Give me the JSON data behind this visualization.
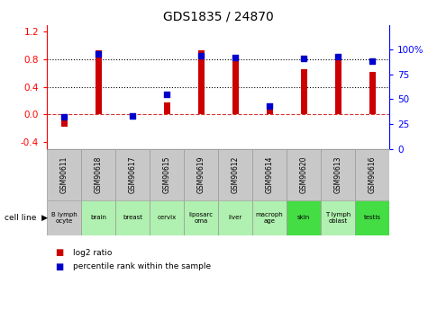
{
  "title": "GDS1835 / 24870",
  "samples": [
    "GSM90611",
    "GSM90618",
    "GSM90617",
    "GSM90615",
    "GSM90619",
    "GSM90612",
    "GSM90614",
    "GSM90620",
    "GSM90613",
    "GSM90616"
  ],
  "cell_lines": [
    "B lymph\nocyte",
    "brain",
    "breast",
    "cervix",
    "liposarc\noma",
    "liver",
    "macroph\nage",
    "skin",
    "T lymph\noblast",
    "testis"
  ],
  "cell_line_colors": [
    "#c8c8c8",
    "#b0f0b0",
    "#b0f0b0",
    "#b0f0b0",
    "#b0f0b0",
    "#b0f0b0",
    "#b0f0b0",
    "#44dd44",
    "#b0f0b0",
    "#44dd44"
  ],
  "gsm_box_color": "#c8c8c8",
  "log2_ratio": [
    -0.18,
    0.93,
    -0.05,
    0.17,
    0.93,
    0.85,
    0.07,
    0.65,
    0.85,
    0.62
  ],
  "pct_rank": [
    32,
    96,
    33,
    55,
    94,
    92,
    43,
    91,
    93,
    88
  ],
  "bar_color": "#cc0000",
  "dot_color": "#0000cc",
  "ylim_left": [
    -0.5,
    1.3
  ],
  "ylim_right": [
    0,
    125
  ],
  "yticks_left": [
    -0.4,
    0.0,
    0.4,
    0.8,
    1.2
  ],
  "yticks_right": [
    0,
    25,
    50,
    75,
    100
  ],
  "ytick_labels_right": [
    "0",
    "25",
    "50",
    "75",
    "100%"
  ],
  "hlines": [
    0.4,
    0.8
  ],
  "zero_line": 0.0,
  "legend_items": [
    "log2 ratio",
    "percentile rank within the sample"
  ],
  "legend_colors": [
    "#cc0000",
    "#0000cc"
  ],
  "bar_width": 0.18
}
